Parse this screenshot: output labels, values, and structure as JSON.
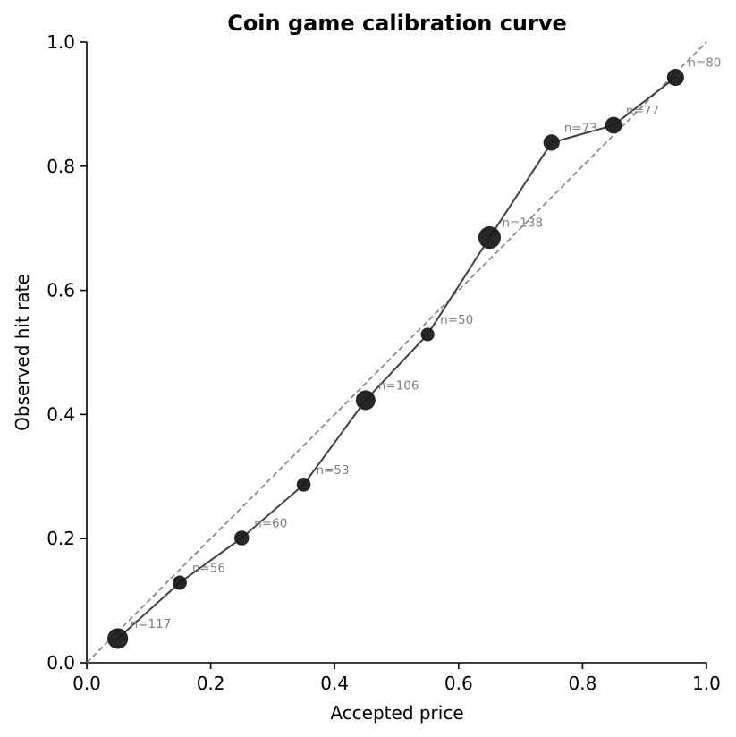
{
  "chart_data": {
    "type": "scatter",
    "title": "Coin game calibration curve",
    "xlabel": "Accepted price",
    "ylabel": "Observed hit rate",
    "xlim": [
      0.0,
      1.0
    ],
    "ylim": [
      0.0,
      1.0
    ],
    "xticks": [
      "0.0",
      "0.2",
      "0.4",
      "0.6",
      "0.8",
      "1.0"
    ],
    "yticks": [
      "0.0",
      "0.2",
      "0.4",
      "0.6",
      "0.8",
      "1.0"
    ],
    "grid": false,
    "reference_line": {
      "style": "dashed",
      "color": "#808080",
      "from": [
        0,
        0
      ],
      "to": [
        1,
        1
      ]
    },
    "series": [
      {
        "color": "#1a1a1a",
        "line_color": "#404040",
        "x": [
          0.05,
          0.15,
          0.25,
          0.35,
          0.45,
          0.55,
          0.65,
          0.75,
          0.85,
          0.95
        ],
        "y": [
          0.039,
          0.129,
          0.201,
          0.287,
          0.423,
          0.529,
          0.685,
          0.838,
          0.866,
          0.943
        ],
        "n": [
          117,
          56,
          60,
          53,
          106,
          50,
          138,
          73,
          77,
          80
        ],
        "labels": [
          "n=117",
          "n=56",
          "n=60",
          "n=53",
          "n=106",
          "n=50",
          "n=138",
          "n=73",
          "n=77",
          "n=80"
        ]
      }
    ]
  }
}
